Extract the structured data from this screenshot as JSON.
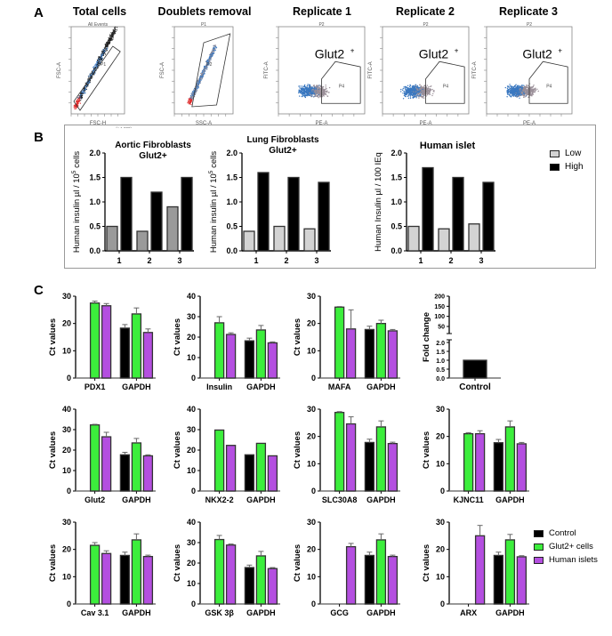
{
  "panel_labels": {
    "a": "A",
    "b": "B",
    "c": "C"
  },
  "panel_a": {
    "plots": [
      {
        "title": "Total cells",
        "header": "All Events",
        "gate_label": "P1",
        "x_axis": "FSC-H",
        "y_axis": "FSC-A",
        "scale_note": "(x 1,000)"
      },
      {
        "title": "Doublets removal",
        "header": "P1",
        "gate_label": "P2",
        "x_axis": "SSC-A",
        "y_axis": "FSC-A"
      },
      {
        "title": "Replicate 1",
        "header": "P2",
        "gate_label": "P4",
        "population": "Glut2",
        "population_sup": "+",
        "x_axis": "PE-A",
        "y_axis": "FITC-A"
      },
      {
        "title": "Replicate 2",
        "header": "P2",
        "gate_label": "P4",
        "population": "Glut2",
        "population_sup": "+",
        "x_axis": "PE-A",
        "y_axis": "FITC-A"
      },
      {
        "title": "Replicate 3",
        "header": "P2",
        "gate_label": "P4",
        "population": "Glut2",
        "population_sup": "+",
        "x_axis": "PE-A",
        "y_axis": "FITC-A"
      }
    ],
    "colors": {
      "events": "#222222",
      "gated": "#3a78c0",
      "excluded": "#e03030",
      "positive": "#9a8f98"
    }
  },
  "panel_b_legend": [
    {
      "label": "Low",
      "color": "#d3d3d3"
    },
    {
      "label": "High",
      "color": "#000000"
    }
  ],
  "panel_c_legend": [
    {
      "label": "Control",
      "color": "#000000"
    },
    {
      "label": "Glut2+ cells",
      "color": "#3cee3c"
    },
    {
      "label": "Human islets",
      "color": "#b44fe0"
    }
  ],
  "chart_data": [
    {
      "type": "bar",
      "panel": "B",
      "title": [
        "Aortic Fibroblasts",
        "Glut2+"
      ],
      "ylabel": "Human insulin µl / 10",
      "ylabel_sup": "5",
      "ylabel_tail": " cells",
      "ylim": [
        0,
        2
      ],
      "yticks": [
        "0.0",
        "0.5",
        "1.0",
        "1.5",
        "2.0"
      ],
      "categories": [
        "1",
        "2",
        "3"
      ],
      "series": [
        {
          "name": "Low",
          "color": "#9a9a9a",
          "values": [
            0.5,
            0.4,
            0.9
          ]
        },
        {
          "name": "High",
          "color": "#000000",
          "values": [
            1.5,
            1.2,
            1.5
          ]
        }
      ]
    },
    {
      "type": "bar",
      "panel": "B",
      "title": [
        "Lung Fibroblasts",
        "Glut2+"
      ],
      "ylabel": "Human insulin µl / 10",
      "ylabel_sup": "5",
      "ylabel_tail": " cells",
      "ylim": [
        0,
        2
      ],
      "yticks": [
        "0.0",
        "0.5",
        "1.0",
        "1.5",
        "2.0"
      ],
      "categories": [
        "1",
        "2",
        "3"
      ],
      "series": [
        {
          "name": "Low",
          "color": "#d3d3d3",
          "values": [
            0.4,
            0.5,
            0.45
          ]
        },
        {
          "name": "High",
          "color": "#000000",
          "values": [
            1.6,
            1.5,
            1.4
          ]
        }
      ]
    },
    {
      "type": "bar",
      "panel": "B",
      "title": [
        "Human islet"
      ],
      "ylabel": "Human Insulin µl / 100 IEq",
      "ylim": [
        0,
        2
      ],
      "yticks": [
        "0.0",
        "0.5",
        "1.0",
        "1.5",
        "2.0"
      ],
      "categories": [
        "1",
        "2",
        "3"
      ],
      "series": [
        {
          "name": "Low",
          "color": "#d3d3d3",
          "values": [
            0.5,
            0.45,
            0.55
          ]
        },
        {
          "name": "High",
          "color": "#000000",
          "values": [
            1.7,
            1.5,
            1.4
          ]
        }
      ]
    },
    {
      "type": "bar",
      "panel": "C",
      "ylabel": "Ct values",
      "ylim": [
        0,
        30
      ],
      "yticks": [
        "0",
        "10",
        "20",
        "30"
      ],
      "categories": [
        "PDX1",
        "GAPDH"
      ],
      "series": [
        {
          "name": "Control",
          "values": [
            null,
            18.3
          ],
          "errors": [
            null,
            1.3
          ]
        },
        {
          "name": "Glut2+ cells",
          "values": [
            27.5,
            23.5
          ],
          "errors": [
            0.7,
            2.2
          ]
        },
        {
          "name": "Human islets",
          "values": [
            26.5,
            16.7
          ],
          "errors": [
            0.8,
            1.3
          ]
        }
      ]
    },
    {
      "type": "bar",
      "panel": "C",
      "ylabel": "Ct values",
      "ylim": [
        0,
        40
      ],
      "yticks": [
        "0",
        "10",
        "20",
        "30",
        "40"
      ],
      "categories": [
        "Insulin",
        "GAPDH"
      ],
      "series": [
        {
          "name": "Control",
          "values": [
            null,
            18.2
          ],
          "errors": [
            null,
            1.3
          ]
        },
        {
          "name": "Glut2+ cells",
          "values": [
            27,
            23.5
          ],
          "errors": [
            3,
            2.2
          ]
        },
        {
          "name": "Human islets",
          "values": [
            21.3,
            17.2
          ],
          "errors": [
            0.8,
            0.5
          ]
        }
      ]
    },
    {
      "type": "bar",
      "panel": "C",
      "ylabel": "Ct values",
      "ylim": [
        0,
        30
      ],
      "yticks": [
        "0",
        "10",
        "20",
        "30"
      ],
      "categories": [
        "MAFA",
        "GAPDH"
      ],
      "series": [
        {
          "name": "Control",
          "values": [
            null,
            17.8
          ],
          "errors": [
            null,
            1.2
          ]
        },
        {
          "name": "Glut2+ cells",
          "values": [
            26,
            20
          ],
          "errors": [
            0.2,
            1.2
          ]
        },
        {
          "name": "Human islets",
          "values": [
            18,
            17.3
          ],
          "errors": [
            7,
            0.5
          ]
        }
      ]
    },
    {
      "type": "bar",
      "panel": "C",
      "broken_axis": true,
      "ylabel": "Fold change",
      "ylim": [
        0,
        2
      ],
      "ylim_upper": [
        50,
        200
      ],
      "yticks": [
        "0.0",
        "0.5",
        "1.0",
        "1.5",
        "2.0"
      ],
      "yticks_upper": [
        "50",
        "100",
        "150",
        "200"
      ],
      "categories": [
        "Control"
      ],
      "series": [
        {
          "name": "Control",
          "values": [
            1.0
          ]
        }
      ]
    },
    {
      "type": "bar",
      "panel": "C",
      "ylabel": "Ct values",
      "ylim": [
        0,
        40
      ],
      "yticks": [
        "0",
        "10",
        "20",
        "30",
        "40"
      ],
      "categories": [
        "Glut2",
        "GAPDH"
      ],
      "series": [
        {
          "name": "Control",
          "values": [
            null,
            17.7
          ],
          "errors": [
            null,
            1.2
          ]
        },
        {
          "name": "Glut2+ cells",
          "values": [
            32.3,
            23.5
          ],
          "errors": [
            0.3,
            2.2
          ]
        },
        {
          "name": "Human islets",
          "values": [
            26.5,
            17.2
          ],
          "errors": [
            2.2,
            0.5
          ]
        }
      ]
    },
    {
      "type": "bar",
      "panel": "C",
      "ylabel": "Ct values",
      "ylim": [
        0,
        40
      ],
      "yticks": [
        "0",
        "10",
        "20",
        "30",
        "40"
      ],
      "categories": [
        "NKX2-2",
        "GAPDH"
      ],
      "series": [
        {
          "name": "Control",
          "values": [
            null,
            17.7
          ]
        },
        {
          "name": "Glut2+ cells",
          "values": [
            29.8,
            23.3
          ]
        },
        {
          "name": "Human islets",
          "values": [
            22.3,
            17.2
          ]
        }
      ]
    },
    {
      "type": "bar",
      "panel": "C",
      "ylabel": "Ct values",
      "ylim": [
        0,
        30
      ],
      "yticks": [
        "0",
        "10",
        "20",
        "30"
      ],
      "categories": [
        "SLC30A8",
        "GAPDH"
      ],
      "series": [
        {
          "name": "Control",
          "values": [
            null,
            17.8
          ],
          "errors": [
            null,
            1.2
          ]
        },
        {
          "name": "Glut2+ cells",
          "values": [
            28.8,
            23.5
          ],
          "errors": [
            0.3,
            2.2
          ]
        },
        {
          "name": "Human islets",
          "values": [
            24.6,
            17.4
          ],
          "errors": [
            2.6,
            0.5
          ]
        }
      ]
    },
    {
      "type": "bar",
      "panel": "C",
      "ylabel": "Ct values",
      "ylim": [
        0,
        30
      ],
      "yticks": [
        "0",
        "10",
        "20",
        "30"
      ],
      "categories": [
        "KJNC11",
        "GAPDH"
      ],
      "series": [
        {
          "name": "Control",
          "values": [
            null,
            17.7
          ],
          "errors": [
            null,
            1.2
          ]
        },
        {
          "name": "Glut2+ cells",
          "values": [
            21,
            23.5
          ],
          "errors": [
            0.4,
            2.2
          ]
        },
        {
          "name": "Human islets",
          "values": [
            21,
            17.3
          ],
          "errors": [
            1.1,
            0.5
          ]
        }
      ]
    },
    {
      "type": "bar",
      "panel": "C",
      "ylabel": "Ct values",
      "ylim": [
        0,
        30
      ],
      "yticks": [
        "0",
        "10",
        "20",
        "30"
      ],
      "categories": [
        "Cav 3.1",
        "GAPDH"
      ],
      "series": [
        {
          "name": "Control",
          "values": [
            null,
            17.8
          ],
          "errors": [
            null,
            1.2
          ]
        },
        {
          "name": "Glut2+ cells",
          "values": [
            21.5,
            23.5
          ],
          "errors": [
            1,
            2.2
          ]
        },
        {
          "name": "Human islets",
          "values": [
            18.5,
            17.4
          ],
          "errors": [
            1,
            0.5
          ]
        }
      ]
    },
    {
      "type": "bar",
      "panel": "C",
      "ylabel": "Ct values",
      "ylim": [
        0,
        40
      ],
      "yticks": [
        "0",
        "10",
        "20",
        "30",
        "40"
      ],
      "categories": [
        "GSK 3β",
        "GAPDH"
      ],
      "series": [
        {
          "name": "Control",
          "values": [
            null,
            17.8
          ],
          "errors": [
            null,
            1.2
          ]
        },
        {
          "name": "Glut2+ cells",
          "values": [
            31.5,
            23.5
          ],
          "errors": [
            2,
            2.2
          ]
        },
        {
          "name": "Human islets",
          "values": [
            28.8,
            17.3
          ],
          "errors": [
            0.5,
            0.5
          ]
        }
      ]
    },
    {
      "type": "bar",
      "panel": "C",
      "ylabel": "Ct values",
      "ylim": [
        0,
        30
      ],
      "yticks": [
        "0",
        "10",
        "20",
        "30"
      ],
      "categories": [
        "GCG",
        "GAPDH"
      ],
      "series": [
        {
          "name": "Control",
          "values": [
            null,
            17.8
          ],
          "errors": [
            null,
            1.2
          ]
        },
        {
          "name": "Glut2+ cells",
          "values": [
            null,
            23.5
          ],
          "errors": [
            null,
            2.2
          ]
        },
        {
          "name": "Human islets",
          "values": [
            21,
            17.4
          ],
          "errors": [
            1.2,
            0.5
          ]
        }
      ]
    },
    {
      "type": "bar",
      "panel": "C",
      "ylabel": "Ct values",
      "ylim": [
        0,
        30
      ],
      "yticks": [
        "0",
        "10",
        "20",
        "30"
      ],
      "categories": [
        "ARX",
        "GAPDH"
      ],
      "series": [
        {
          "name": "Control",
          "values": [
            null,
            17.8
          ],
          "errors": [
            null,
            1.2
          ]
        },
        {
          "name": "Glut2+ cells",
          "values": [
            null,
            23.5
          ],
          "errors": [
            null,
            2
          ]
        },
        {
          "name": "Human islets",
          "values": [
            25,
            17.3
          ],
          "errors": [
            3.8,
            0.4
          ]
        }
      ]
    }
  ]
}
